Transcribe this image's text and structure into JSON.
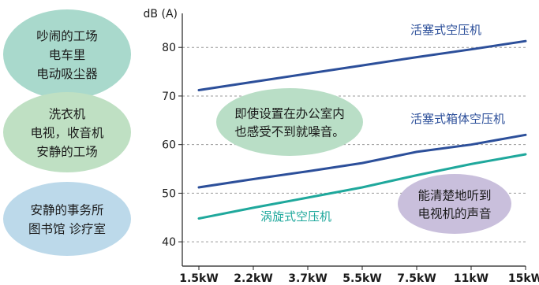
{
  "chart_data": {
    "type": "line",
    "ylabel": "dB (A)",
    "categories": [
      "1.5kW",
      "2.2kW",
      "3.7kW",
      "5.5kW",
      "7.5kW",
      "11kW",
      "15kW"
    ],
    "yticks": [
      40,
      50,
      60,
      70,
      80
    ],
    "ylim": [
      35,
      87
    ],
    "grid": "horizontal",
    "series": [
      {
        "name": "活塞式空压机",
        "color": "#2c4f9a",
        "values": [
          71.2,
          72.9,
          74.6,
          76.3,
          78.0,
          79.6,
          81.3
        ]
      },
      {
        "name": "活塞式箱体空压机",
        "color": "#2c4f9a",
        "values": [
          51.2,
          52.9,
          54.5,
          56.2,
          58.5,
          60.0,
          62.0
        ]
      },
      {
        "name": "涡旋式空压机",
        "color": "#1fa89c",
        "values": [
          44.8,
          47.0,
          49.1,
          51.2,
          53.7,
          56.0,
          58.0
        ]
      }
    ],
    "annotations": [
      {
        "lines": [
          "即使设置在办公室内",
          "也感受不到就噪音。"
        ],
        "color": "#b9dec6"
      },
      {
        "lines": [
          "能清楚地听到",
          "电视机的声音"
        ],
        "color": "#c9bfdc"
      }
    ]
  },
  "legend": {
    "items": [
      {
        "lines": [
          "吵闹的工场",
          "电车里",
          "电动吸尘器"
        ],
        "color": "#a9d9cc"
      },
      {
        "lines": [
          "洗衣机",
          "电视，收音机",
          "安静的工场"
        ],
        "color": "#bfe0c3"
      },
      {
        "lines": [
          "安静的事务所",
          "图书馆 诊疗室"
        ],
        "color": "#bcd9ea"
      }
    ]
  }
}
